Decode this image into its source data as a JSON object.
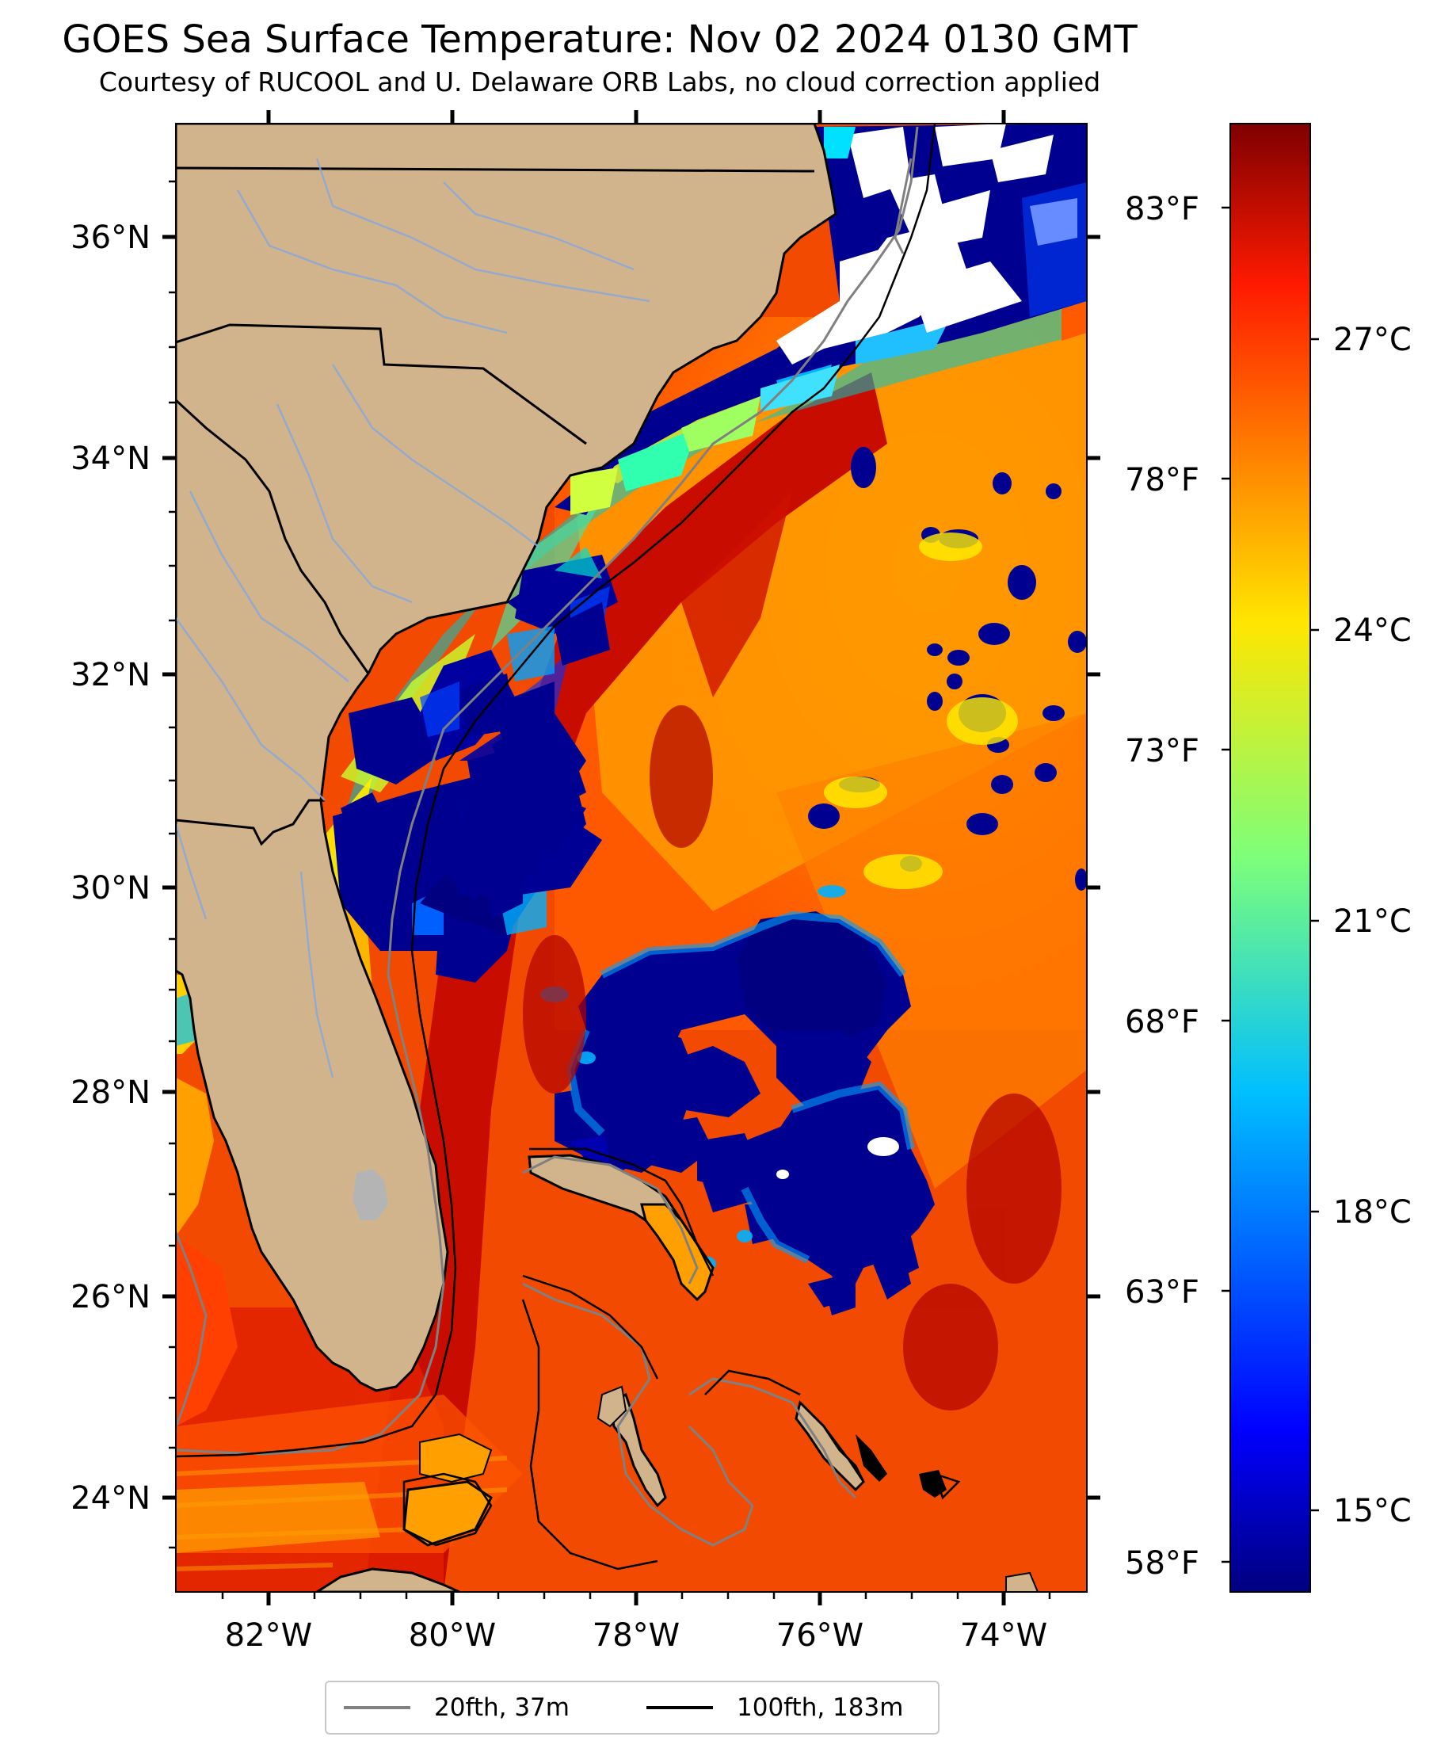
{
  "title": "GOES Sea Surface Temperature: Nov 02 2024 0130 GMT",
  "subtitle": "Courtesy of RUCOOL and U. Delaware ORB Labs, no cloud correction applied",
  "map": {
    "lon_labels": [
      "82°W",
      "80°W",
      "78°W",
      "76°W",
      "74°W"
    ],
    "lat_labels": [
      "36°N",
      "34°N",
      "32°N",
      "30°N",
      "28°N",
      "26°N",
      "24°N"
    ],
    "fahrenheit_labels": [
      "83°F",
      "78°F",
      "73°F",
      "68°F",
      "63°F",
      "58°F"
    ],
    "colors": {
      "land": "#d2b48c",
      "warm": "#d81e00",
      "cool": "#000090",
      "cloud": "#ffffff",
      "rivers": "#8aa8d8"
    }
  },
  "colorbar": {
    "celsius_labels": [
      "27°C",
      "24°C",
      "21°C",
      "18°C",
      "15°C"
    ],
    "colormap": "jet"
  },
  "legend": {
    "items": [
      {
        "label": "20fth, 37m",
        "color": "#808080"
      },
      {
        "label": "100fth, 183m",
        "color": "#000000"
      }
    ]
  }
}
